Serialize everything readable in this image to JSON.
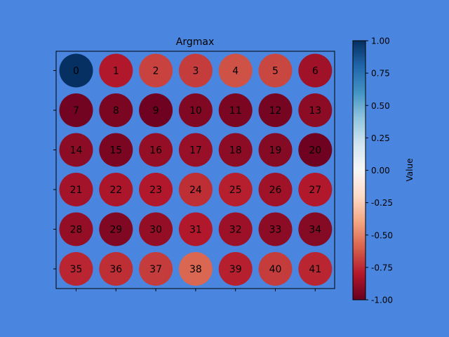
{
  "chart_data": {
    "type": "heatmap",
    "title": "Argmax",
    "xlabel": "",
    "ylabel": "",
    "rows": 6,
    "cols": 7,
    "cells": [
      {
        "label": "0",
        "value": 1.0
      },
      {
        "label": "1",
        "value": -0.8
      },
      {
        "label": "2",
        "value": -0.68
      },
      {
        "label": "3",
        "value": -0.7
      },
      {
        "label": "4",
        "value": -0.64
      },
      {
        "label": "5",
        "value": -0.67
      },
      {
        "label": "6",
        "value": -0.85
      },
      {
        "label": "7",
        "value": -0.97
      },
      {
        "label": "8",
        "value": -0.95
      },
      {
        "label": "9",
        "value": -0.98
      },
      {
        "label": "10",
        "value": -0.93
      },
      {
        "label": "11",
        "value": -0.95
      },
      {
        "label": "12",
        "value": -0.96
      },
      {
        "label": "13",
        "value": -0.9
      },
      {
        "label": "14",
        "value": -0.9
      },
      {
        "label": "15",
        "value": -0.95
      },
      {
        "label": "16",
        "value": -0.88
      },
      {
        "label": "17",
        "value": -0.87
      },
      {
        "label": "18",
        "value": -0.9
      },
      {
        "label": "19",
        "value": -0.92
      },
      {
        "label": "20",
        "value": -0.98
      },
      {
        "label": "21",
        "value": -0.84
      },
      {
        "label": "22",
        "value": -0.82
      },
      {
        "label": "23",
        "value": -0.8
      },
      {
        "label": "24",
        "value": -0.74
      },
      {
        "label": "25",
        "value": -0.78
      },
      {
        "label": "26",
        "value": -0.85
      },
      {
        "label": "27",
        "value": -0.8
      },
      {
        "label": "28",
        "value": -0.88
      },
      {
        "label": "29",
        "value": -0.93
      },
      {
        "label": "30",
        "value": -0.88
      },
      {
        "label": "31",
        "value": -0.8
      },
      {
        "label": "32",
        "value": -0.86
      },
      {
        "label": "33",
        "value": -0.9
      },
      {
        "label": "34",
        "value": -0.92
      },
      {
        "label": "35",
        "value": -0.76
      },
      {
        "label": "36",
        "value": -0.74
      },
      {
        "label": "37",
        "value": -0.7
      },
      {
        "label": "38",
        "value": -0.58
      },
      {
        "label": "39",
        "value": -0.78
      },
      {
        "label": "40",
        "value": -0.7
      },
      {
        "label": "41",
        "value": -0.76
      }
    ],
    "colorbar": {
      "label": "Value",
      "colormap": "RdBu",
      "range": [
        -1.0,
        1.0
      ],
      "ticks": [
        "-1.00",
        "-0.75",
        "-0.50",
        "-0.25",
        "0.00",
        "0.25",
        "0.50",
        "0.75",
        "1.00"
      ]
    },
    "grid": false
  },
  "colors": {
    "background": "#4a86df",
    "axes_face": "#4a86df",
    "spine": "#000000",
    "text": "#000000"
  }
}
